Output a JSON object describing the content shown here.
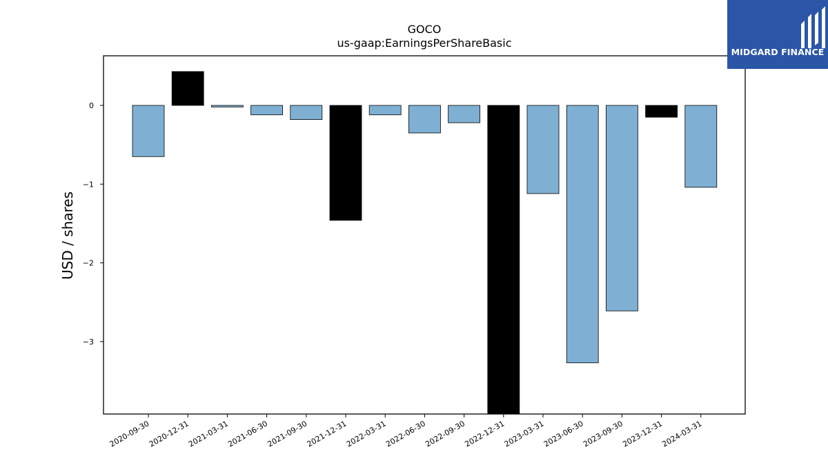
{
  "chart_data": {
    "type": "bar",
    "title": "GOCO",
    "subtitle": "us-gaap:EarningsPerShareBasic",
    "xlabel": "",
    "ylabel": "USD / shares",
    "ylim": [
      -3.92,
      0.63
    ],
    "yticks": [
      0,
      -1,
      -2,
      -3
    ],
    "ytick_labels": [
      "0",
      "−1",
      "−2",
      "−3"
    ],
    "grid": false,
    "categories": [
      "2020-09-30",
      "2020-12-31",
      "2021-03-31",
      "2021-06-30",
      "2021-09-30",
      "2021-12-31",
      "2022-03-31",
      "2022-06-30",
      "2022-09-30",
      "2022-12-31",
      "2023-03-31",
      "2023-06-30",
      "2023-09-30",
      "2023-12-31",
      "2024-03-31"
    ],
    "values": [
      -0.65,
      0.43,
      -0.02,
      -0.12,
      -0.18,
      -1.46,
      -0.12,
      -0.35,
      -0.22,
      -3.92,
      -1.12,
      -3.27,
      -2.61,
      -0.15,
      -1.04
    ],
    "bar_colors": [
      "#7fb0d3",
      "#000000",
      "#7fb0d3",
      "#7fb0d3",
      "#7fb0d3",
      "#000000",
      "#7fb0d3",
      "#7fb0d3",
      "#7fb0d3",
      "#000000",
      "#7fb0d3",
      "#7fb0d3",
      "#7fb0d3",
      "#000000",
      "#7fb0d3"
    ]
  },
  "logo": {
    "text": "MIDGARD FINANCE",
    "background": "#2b56a8"
  }
}
